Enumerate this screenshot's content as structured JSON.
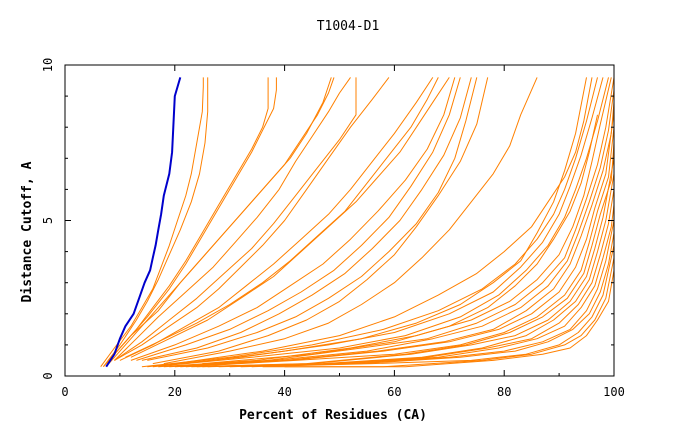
{
  "chart_data": {
    "type": "line",
    "title": "T1004-D1",
    "xlabel": "Percent of Residues (CA)",
    "ylabel": "Distance Cutoff, A",
    "xlim": [
      0,
      100
    ],
    "ylim": [
      0,
      10
    ],
    "xticks": [
      0,
      20,
      40,
      60,
      80,
      100
    ],
    "yticks": [
      0,
      5,
      10
    ],
    "grid": false,
    "colors": {
      "highlight": "#0000cc",
      "others": "#ff8000",
      "axes": "#000000"
    },
    "highlight_series": {
      "x": [
        7.5,
        9,
        10,
        11,
        12.5,
        13.5,
        14.5,
        15.5,
        16,
        16.5,
        17,
        17.5,
        18,
        19,
        19.5,
        20,
        21
      ],
      "y": [
        0.3,
        0.7,
        1.2,
        1.6,
        2.0,
        2.5,
        3.0,
        3.4,
        3.8,
        4.2,
        4.7,
        5.2,
        5.8,
        6.5,
        7.2,
        9.0,
        9.6
      ]
    },
    "other_series": [
      {
        "x": [
          6.5,
          9,
          12,
          14,
          16,
          17.5,
          19,
          20.5,
          22,
          23,
          24,
          25,
          25.2,
          25.2
        ],
        "y": [
          0.3,
          0.9,
          1.6,
          2.2,
          2.8,
          3.5,
          4.2,
          5.0,
          5.8,
          6.5,
          7.5,
          8.5,
          9.3,
          9.6
        ]
      },
      {
        "x": [
          7,
          10,
          13,
          15,
          17,
          19,
          21,
          23,
          24.5,
          25.5,
          26,
          26,
          26
        ],
        "y": [
          0.3,
          1.0,
          1.8,
          2.4,
          3.1,
          3.9,
          4.7,
          5.6,
          6.5,
          7.5,
          8.5,
          9.2,
          9.6
        ]
      },
      {
        "x": [
          7,
          10,
          13,
          16,
          19,
          22,
          25,
          28,
          31,
          34,
          36,
          37,
          37,
          37
        ],
        "y": [
          0.3,
          0.9,
          1.5,
          2.2,
          2.9,
          3.7,
          4.6,
          5.5,
          6.4,
          7.3,
          8.0,
          8.6,
          9.2,
          9.6
        ]
      },
      {
        "x": [
          7.5,
          11,
          15,
          19,
          22,
          25,
          28,
          31,
          34,
          36,
          38,
          38.5,
          38.5
        ],
        "y": [
          0.4,
          1.1,
          1.9,
          2.8,
          3.6,
          4.5,
          5.4,
          6.3,
          7.2,
          7.9,
          8.6,
          9.2,
          9.6
        ]
      },
      {
        "x": [
          8,
          12,
          16,
          20,
          24,
          28,
          32,
          36,
          40,
          43,
          46,
          48,
          49
        ],
        "y": [
          0.4,
          1.2,
          2.0,
          2.8,
          3.6,
          4.4,
          5.2,
          6.0,
          6.8,
          7.6,
          8.4,
          9.1,
          9.6
        ]
      },
      {
        "x": [
          8,
          12,
          17,
          21,
          25,
          29,
          33,
          37,
          41,
          44,
          47,
          48.5
        ],
        "y": [
          0.5,
          1.3,
          2.1,
          3.0,
          3.8,
          4.6,
          5.4,
          6.2,
          7.0,
          7.8,
          8.8,
          9.6
        ]
      },
      {
        "x": [
          9,
          13,
          17,
          22,
          27,
          31,
          35,
          39,
          42,
          45,
          48,
          50,
          52
        ],
        "y": [
          0.5,
          1.2,
          1.9,
          2.7,
          3.5,
          4.3,
          5.1,
          6.0,
          6.9,
          7.7,
          8.5,
          9.1,
          9.6
        ]
      },
      {
        "x": [
          9,
          14,
          19,
          24,
          29,
          34,
          38,
          42,
          46,
          50,
          53,
          53,
          53
        ],
        "y": [
          0.5,
          1.1,
          1.8,
          2.5,
          3.3,
          4.1,
          4.9,
          5.8,
          6.7,
          7.6,
          8.4,
          9.1,
          9.6
        ]
      },
      {
        "x": [
          9,
          14,
          19,
          24,
          28,
          32,
          36,
          40,
          44,
          48,
          52,
          56,
          59
        ],
        "y": [
          0.5,
          1.0,
          1.6,
          2.2,
          2.8,
          3.5,
          4.2,
          5.0,
          6.0,
          7.0,
          8.0,
          8.9,
          9.6
        ]
      },
      {
        "x": [
          10,
          16,
          22,
          28,
          33,
          38,
          43,
          48,
          52,
          56,
          60,
          64,
          67
        ],
        "y": [
          0.5,
          1.0,
          1.6,
          2.2,
          2.9,
          3.6,
          4.4,
          5.2,
          6.0,
          6.9,
          7.8,
          8.8,
          9.6
        ]
      },
      {
        "x": [
          11,
          17,
          24,
          30,
          36,
          41,
          46,
          51,
          55,
          59,
          63,
          66,
          68
        ],
        "y": [
          0.6,
          1.1,
          1.7,
          2.3,
          3.0,
          3.7,
          4.5,
          5.3,
          6.2,
          7.1,
          8.0,
          8.9,
          9.6
        ]
      },
      {
        "x": [
          12,
          19,
          26,
          32,
          38,
          43,
          48,
          53,
          57,
          61,
          64,
          67,
          70
        ],
        "y": [
          0.6,
          1.2,
          1.8,
          2.5,
          3.2,
          4.0,
          4.8,
          5.6,
          6.4,
          7.2,
          8.0,
          8.8,
          9.6
        ]
      },
      {
        "x": [
          12,
          20,
          28,
          35,
          41,
          47,
          52,
          57,
          62,
          66,
          69,
          71
        ],
        "y": [
          0.5,
          1.0,
          1.6,
          2.2,
          2.9,
          3.6,
          4.4,
          5.3,
          6.3,
          7.3,
          8.4,
          9.6
        ]
      },
      {
        "x": [
          13,
          22,
          30,
          37,
          43,
          49,
          54,
          59,
          63,
          67,
          70,
          72
        ],
        "y": [
          0.5,
          1.0,
          1.5,
          2.1,
          2.7,
          3.4,
          4.2,
          5.1,
          6.1,
          7.2,
          8.4,
          9.6
        ]
      },
      {
        "x": [
          14,
          24,
          32,
          39,
          45,
          51,
          56,
          61,
          65,
          69,
          72,
          74
        ],
        "y": [
          0.5,
          0.9,
          1.4,
          2.0,
          2.6,
          3.3,
          4.1,
          5.0,
          6.0,
          7.1,
          8.3,
          9.6
        ]
      },
      {
        "x": [
          15,
          26,
          35,
          42,
          48,
          54,
          59,
          64,
          68,
          71,
          73,
          75
        ],
        "y": [
          0.5,
          0.9,
          1.4,
          1.9,
          2.5,
          3.2,
          4.0,
          4.9,
          5.9,
          7.0,
          8.2,
          9.6
        ]
      },
      {
        "x": [
          16,
          28,
          37,
          44,
          50,
          55,
          60,
          64,
          68,
          72,
          75,
          77
        ],
        "y": [
          0.4,
          0.8,
          1.3,
          1.8,
          2.4,
          3.1,
          3.9,
          4.8,
          5.8,
          6.9,
          8.1,
          9.6
        ]
      },
      {
        "x": [
          18,
          30,
          40,
          48,
          54,
          60,
          65,
          70,
          74,
          78,
          81,
          83,
          86
        ],
        "y": [
          0.4,
          0.8,
          1.2,
          1.7,
          2.3,
          3.0,
          3.8,
          4.7,
          5.6,
          6.5,
          7.4,
          8.4,
          9.6
        ]
      },
      {
        "x": [
          14,
          30,
          45,
          58,
          68,
          76,
          82,
          86,
          89,
          91,
          93,
          95,
          97
        ],
        "y": [
          0.3,
          0.6,
          1.0,
          1.5,
          2.1,
          2.8,
          3.6,
          4.4,
          5.2,
          6.0,
          7.0,
          8.2,
          9.6
        ]
      },
      {
        "x": [
          15,
          32,
          48,
          60,
          70,
          78,
          83,
          87,
          90,
          92,
          94,
          96,
          98
        ],
        "y": [
          0.3,
          0.6,
          1.0,
          1.4,
          2.0,
          2.7,
          3.5,
          4.3,
          5.2,
          6.1,
          7.1,
          8.3,
          9.6
        ]
      },
      {
        "x": [
          16,
          34,
          50,
          62,
          72,
          79,
          84,
          88,
          91,
          93,
          95,
          97,
          99
        ],
        "y": [
          0.3,
          0.6,
          0.9,
          1.3,
          1.9,
          2.6,
          3.4,
          4.2,
          5.1,
          6.0,
          7.0,
          8.2,
          9.6
        ]
      },
      {
        "x": [
          17,
          35,
          52,
          64,
          74,
          81,
          86,
          90,
          92.5,
          94.5,
          96,
          97.5,
          99.5
        ],
        "y": [
          0.3,
          0.5,
          0.9,
          1.3,
          1.8,
          2.4,
          3.1,
          3.9,
          4.8,
          5.8,
          6.9,
          8.1,
          9.6
        ]
      },
      {
        "x": [
          18,
          37,
          54,
          66,
          75,
          82,
          87,
          91,
          93,
          95,
          97,
          98.5,
          100
        ],
        "y": [
          0.3,
          0.5,
          0.9,
          1.2,
          1.7,
          2.3,
          3.0,
          3.8,
          4.7,
          5.7,
          6.8,
          8.0,
          9.6
        ]
      },
      {
        "x": [
          19,
          38,
          55,
          67,
          76,
          83,
          88,
          91.5,
          93.5,
          95.5,
          97.5,
          99,
          100
        ],
        "y": [
          0.3,
          0.5,
          0.8,
          1.2,
          1.6,
          2.2,
          2.9,
          3.7,
          4.6,
          5.6,
          6.7,
          7.9,
          9.2
        ]
      },
      {
        "x": [
          20,
          40,
          57,
          69,
          78,
          84,
          89,
          92,
          94,
          96,
          98,
          99.5,
          100
        ],
        "y": [
          0.3,
          0.5,
          0.8,
          1.1,
          1.5,
          2.1,
          2.8,
          3.6,
          4.5,
          5.5,
          6.6,
          7.8,
          8.8
        ]
      },
      {
        "x": [
          21,
          41,
          58,
          70,
          79,
          85,
          90,
          93,
          95,
          96.5,
          98.5,
          100
        ],
        "y": [
          0.3,
          0.5,
          0.8,
          1.1,
          1.5,
          2.0,
          2.7,
          3.5,
          4.4,
          5.4,
          6.5,
          8.5
        ]
      },
      {
        "x": [
          22,
          42,
          60,
          72,
          80,
          86,
          91,
          94,
          95.5,
          97,
          99,
          100
        ],
        "y": [
          0.3,
          0.5,
          0.7,
          1.0,
          1.4,
          1.9,
          2.6,
          3.4,
          4.3,
          5.3,
          6.4,
          8.0
        ]
      },
      {
        "x": [
          23,
          44,
          62,
          73,
          81,
          87,
          91.5,
          94.5,
          96,
          97.5,
          99.5,
          100
        ],
        "y": [
          0.3,
          0.4,
          0.7,
          1.0,
          1.4,
          1.9,
          2.5,
          3.3,
          4.2,
          5.2,
          6.3,
          7.5
        ]
      },
      {
        "x": [
          24,
          45,
          63,
          74,
          82,
          88,
          92,
          95,
          96.5,
          98,
          100
        ],
        "y": [
          0.3,
          0.4,
          0.7,
          1.0,
          1.3,
          1.8,
          2.4,
          3.2,
          4.1,
          5.1,
          7.0
        ]
      },
      {
        "x": [
          25,
          47,
          65,
          76,
          84,
          89,
          93,
          95.5,
          97,
          98.5,
          100
        ],
        "y": [
          0.3,
          0.4,
          0.6,
          0.9,
          1.3,
          1.8,
          2.4,
          3.1,
          4.0,
          5.0,
          6.5
        ]
      },
      {
        "x": [
          26,
          48,
          66,
          77,
          85,
          90,
          93.5,
          96,
          97.5,
          99,
          100
        ],
        "y": [
          0.3,
          0.4,
          0.6,
          0.9,
          1.2,
          1.7,
          2.3,
          3.0,
          3.9,
          4.9,
          6.0
        ]
      },
      {
        "x": [
          28,
          50,
          68,
          79,
          86,
          91,
          94,
          96.5,
          98,
          99.5,
          100
        ],
        "y": [
          0.3,
          0.4,
          0.6,
          0.9,
          1.2,
          1.6,
          2.2,
          2.9,
          3.8,
          4.8,
          5.5
        ]
      },
      {
        "x": [
          30,
          52,
          70,
          80,
          87,
          92,
          95,
          97,
          98.5,
          100
        ],
        "y": [
          0.3,
          0.4,
          0.6,
          0.8,
          1.1,
          1.5,
          2.1,
          2.8,
          3.7,
          5.0
        ]
      },
      {
        "x": [
          32,
          54,
          72,
          82,
          88,
          92.5,
          95.5,
          97.5,
          99,
          100
        ],
        "y": [
          0.3,
          0.4,
          0.6,
          0.8,
          1.1,
          1.5,
          2.0,
          2.7,
          3.6,
          4.6
        ]
      },
      {
        "x": [
          34,
          56,
          74,
          84,
          90,
          93.5,
          96,
          98,
          100
        ],
        "y": [
          0.3,
          0.4,
          0.5,
          0.7,
          1.0,
          1.4,
          1.9,
          2.6,
          4.2
        ]
      },
      {
        "x": [
          36,
          58,
          76,
          85,
          91,
          94,
          96.5,
          98.5,
          100
        ],
        "y": [
          0.3,
          0.3,
          0.5,
          0.7,
          1.0,
          1.3,
          1.8,
          2.5,
          3.8
        ]
      },
      {
        "x": [
          40,
          62,
          78,
          87,
          92,
          95,
          97,
          99,
          100
        ],
        "y": [
          0.3,
          0.3,
          0.5,
          0.7,
          0.9,
          1.3,
          1.8,
          2.4,
          3.4
        ]
      },
      {
        "x": [
          20,
          36,
          50,
          60,
          68,
          75,
          80,
          85,
          88,
          91,
          93,
          94.5,
          96
        ],
        "y": [
          0.4,
          0.8,
          1.3,
          1.9,
          2.6,
          3.3,
          4.0,
          4.8,
          5.6,
          6.4,
          7.2,
          8.2,
          9.6
        ]
      },
      {
        "x": [
          22,
          40,
          54,
          64,
          72,
          78,
          83,
          86,
          89,
          91,
          93,
          95
        ],
        "y": [
          0.4,
          0.8,
          1.2,
          1.7,
          2.3,
          3.0,
          3.7,
          4.6,
          5.6,
          6.6,
          7.8,
          9.6
        ]
      },
      {
        "x": [
          25,
          45,
          60,
          70,
          77,
          82,
          86,
          89,
          92,
          94,
          95.5,
          97
        ],
        "y": [
          0.4,
          0.7,
          1.1,
          1.6,
          2.2,
          2.9,
          3.6,
          4.4,
          5.3,
          6.2,
          7.2,
          8.4
        ]
      }
    ]
  }
}
